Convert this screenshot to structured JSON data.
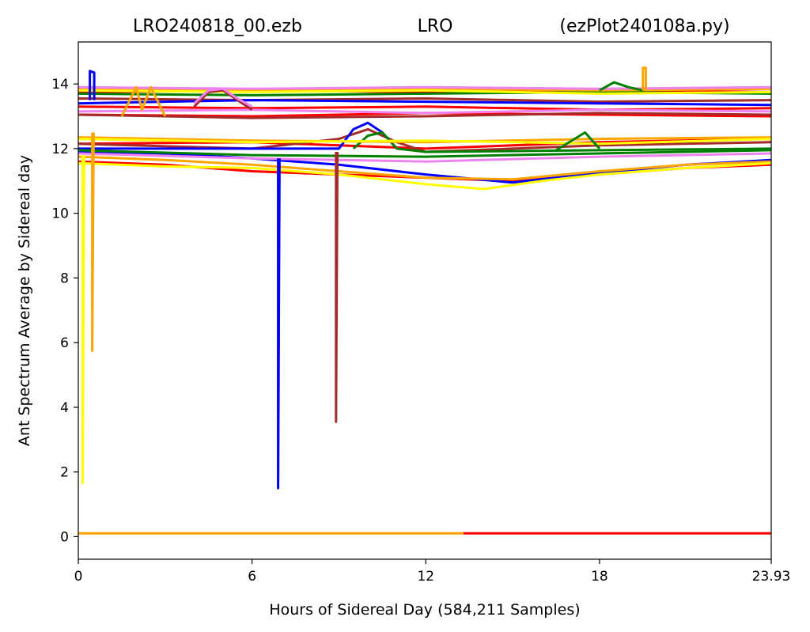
{
  "chart_data": {
    "type": "line",
    "title_parts": [
      "LRO240818_00.ezb",
      "LRO",
      "(ezPlot240108a.py)"
    ],
    "xlabel": "Hours of Sidereal Day  (584,211 Samples)",
    "ylabel": "Ant Spectrum Average by Sidereal day",
    "xlim": [
      0,
      23.93
    ],
    "ylim": [
      -0.7,
      15.3
    ],
    "xticks": [
      0,
      6,
      12,
      18,
      23.93
    ],
    "xtick_labels": [
      "0",
      "6",
      "12",
      "18",
      "23.93"
    ],
    "yticks": [
      0,
      2,
      4,
      6,
      8,
      10,
      12,
      14
    ],
    "ytick_labels": [
      "0",
      "2",
      "4",
      "6",
      "8",
      "10",
      "12",
      "14"
    ],
    "grid": false,
    "legend": "none",
    "colors": {
      "red": "#ff0000",
      "blue": "#0000ff",
      "green": "#008000",
      "orange": "#ffa500",
      "yellow": "#ffff00",
      "brown": "#a52a2a",
      "violet": "#ee82ee"
    },
    "series": [
      {
        "color": "red",
        "x": [
          0,
          6,
          12,
          18,
          23.93
        ],
        "y": [
          13.75,
          13.8,
          13.75,
          13.8,
          13.75
        ]
      },
      {
        "color": "red",
        "x": [
          0,
          6,
          12,
          18,
          23.93
        ],
        "y": [
          13.3,
          13.25,
          13.3,
          13.2,
          13.25
        ]
      },
      {
        "color": "red",
        "x": [
          0,
          6,
          12,
          18,
          23.93
        ],
        "y": [
          13.05,
          13.0,
          13.1,
          13.05,
          13.0
        ]
      },
      {
        "color": "red",
        "x": [
          0,
          3,
          6,
          9,
          12,
          15,
          18,
          21,
          23.93
        ],
        "y": [
          11.6,
          11.5,
          11.3,
          11.2,
          11.1,
          11.0,
          11.2,
          11.4,
          11.5
        ]
      },
      {
        "color": "red",
        "x": [
          0,
          6,
          12,
          18,
          23.93
        ],
        "y": [
          12.15,
          12.2,
          12.0,
          12.2,
          12.3
        ]
      },
      {
        "color": "brown",
        "x": [
          0,
          6,
          12,
          18,
          23.93
        ],
        "y": [
          13.55,
          13.5,
          13.55,
          13.45,
          13.5
        ]
      },
      {
        "color": "brown",
        "x": [
          0,
          6,
          12,
          18,
          23.93
        ],
        "y": [
          13.05,
          12.95,
          13.0,
          13.1,
          13.05
        ]
      },
      {
        "color": "brown",
        "x": [
          0,
          6,
          9,
          10,
          11,
          12,
          18,
          23.93
        ],
        "y": [
          12.15,
          12.0,
          12.3,
          12.6,
          12.2,
          11.9,
          12.1,
          12.2
        ]
      },
      {
        "color": "blue",
        "x": [
          0,
          6,
          12,
          18,
          23.93
        ],
        "y": [
          13.4,
          13.5,
          13.45,
          13.4,
          13.35
        ]
      },
      {
        "color": "blue",
        "x": [
          0,
          3,
          6,
          9,
          12,
          15,
          18,
          21,
          23.93
        ],
        "y": [
          11.9,
          11.85,
          11.7,
          11.5,
          11.2,
          10.95,
          11.25,
          11.5,
          11.65
        ]
      },
      {
        "color": "blue",
        "x": [
          0,
          9,
          9.5,
          10,
          10.5,
          11
        ],
        "y": [
          12.0,
          12.0,
          12.6,
          12.8,
          12.5,
          12.0
        ]
      },
      {
        "color": "green",
        "x": [
          0,
          6,
          12,
          18,
          23.93
        ],
        "y": [
          13.7,
          13.65,
          13.7,
          13.75,
          13.7
        ]
      },
      {
        "color": "green",
        "x": [
          0,
          6,
          12,
          18,
          23.93
        ],
        "y": [
          11.95,
          11.8,
          11.75,
          11.85,
          11.95
        ]
      },
      {
        "color": "green",
        "x": [
          9.5,
          10,
          10.5,
          11,
          12,
          18,
          23.93
        ],
        "y": [
          12.0,
          12.4,
          12.5,
          12.0,
          11.9,
          11.95,
          12.0
        ]
      },
      {
        "color": "orange",
        "x": [
          0,
          6,
          12,
          18,
          23.93
        ],
        "y": [
          13.85,
          13.8,
          13.85,
          13.8,
          13.85
        ]
      },
      {
        "color": "orange",
        "x": [
          0,
          6,
          12,
          18,
          23.93
        ],
        "y": [
          12.35,
          12.25,
          12.2,
          12.3,
          12.35
        ]
      },
      {
        "color": "orange",
        "x": [
          0,
          3,
          6,
          9,
          12,
          15,
          18,
          21,
          23.93
        ],
        "y": [
          11.75,
          11.65,
          11.5,
          11.3,
          11.1,
          11.05,
          11.3,
          11.5,
          11.6
        ]
      },
      {
        "color": "violet",
        "x": [
          0,
          6,
          12,
          18,
          23.93
        ],
        "y": [
          13.9,
          13.85,
          13.9,
          13.85,
          13.9
        ]
      },
      {
        "color": "violet",
        "x": [
          0,
          6,
          12,
          18,
          23.93
        ],
        "y": [
          13.15,
          13.2,
          13.1,
          13.2,
          13.15
        ]
      },
      {
        "color": "violet",
        "x": [
          0,
          6,
          12,
          18,
          23.93
        ],
        "y": [
          11.85,
          11.7,
          11.6,
          11.75,
          11.85
        ]
      },
      {
        "color": "yellow",
        "x": [
          0,
          6,
          12,
          18,
          23.93
        ],
        "y": [
          13.8,
          13.75,
          13.8,
          13.7,
          13.75
        ]
      },
      {
        "color": "yellow",
        "x": [
          0,
          6,
          12,
          18,
          23.93
        ],
        "y": [
          12.3,
          12.2,
          12.25,
          12.15,
          12.3
        ]
      },
      {
        "color": "yellow",
        "x": [
          0,
          3,
          6,
          9,
          12,
          14,
          16,
          18,
          21,
          23.93
        ],
        "y": [
          11.55,
          11.45,
          11.4,
          11.2,
          10.9,
          10.75,
          11.0,
          11.2,
          11.4,
          11.55
        ]
      },
      {
        "color": "brown",
        "x": [
          4,
          4.5,
          5,
          5.5,
          6
        ],
        "y": [
          13.3,
          13.75,
          13.8,
          13.5,
          13.2
        ]
      },
      {
        "color": "violet",
        "x": [
          4,
          4.5,
          5,
          5.5,
          6
        ],
        "y": [
          13.4,
          13.8,
          13.85,
          13.55,
          13.3
        ]
      },
      {
        "color": "green",
        "x": [
          18,
          18.5,
          19,
          19.5
        ],
        "y": [
          13.8,
          14.05,
          13.9,
          13.8
        ]
      },
      {
        "color": "green",
        "x": [
          16.5,
          17.5,
          18
        ],
        "y": [
          11.95,
          12.5,
          12.0
        ]
      },
      {
        "color": "orange",
        "x": [
          1.5,
          2,
          2.2,
          2.5,
          3
        ],
        "y": [
          13.0,
          13.9,
          13.2,
          13.9,
          13.0
        ]
      },
      {
        "color": "orange",
        "x": [
          19.5,
          19.5,
          19.6,
          19.6
        ],
        "y": [
          13.8,
          14.5,
          14.5,
          13.8
        ]
      },
      {
        "color": "blue",
        "x": [
          0.4,
          0.4,
          0.55,
          0.55
        ],
        "y": [
          13.5,
          14.4,
          14.35,
          13.5
        ]
      },
      {
        "color": "yellow",
        "x": [
          0.15,
          0.15,
          0.2
        ],
        "y": [
          11.8,
          1.65,
          11.8
        ]
      },
      {
        "color": "orange",
        "x": [
          0.48,
          0.48,
          0.53
        ],
        "y": [
          12.5,
          5.75,
          12.5
        ]
      },
      {
        "color": "blue",
        "x": [
          6.9,
          6.9,
          6.95
        ],
        "y": [
          11.7,
          1.5,
          11.7
        ]
      },
      {
        "color": "brown",
        "x": [
          8.9,
          8.9,
          8.95
        ],
        "y": [
          11.9,
          3.55,
          11.9
        ]
      },
      {
        "color": "orange",
        "x": [
          0,
          13.3
        ],
        "y": [
          0.1,
          0.1
        ]
      },
      {
        "color": "red",
        "x": [
          13.3,
          23.93
        ],
        "y": [
          0.1,
          0.1
        ]
      }
    ]
  }
}
